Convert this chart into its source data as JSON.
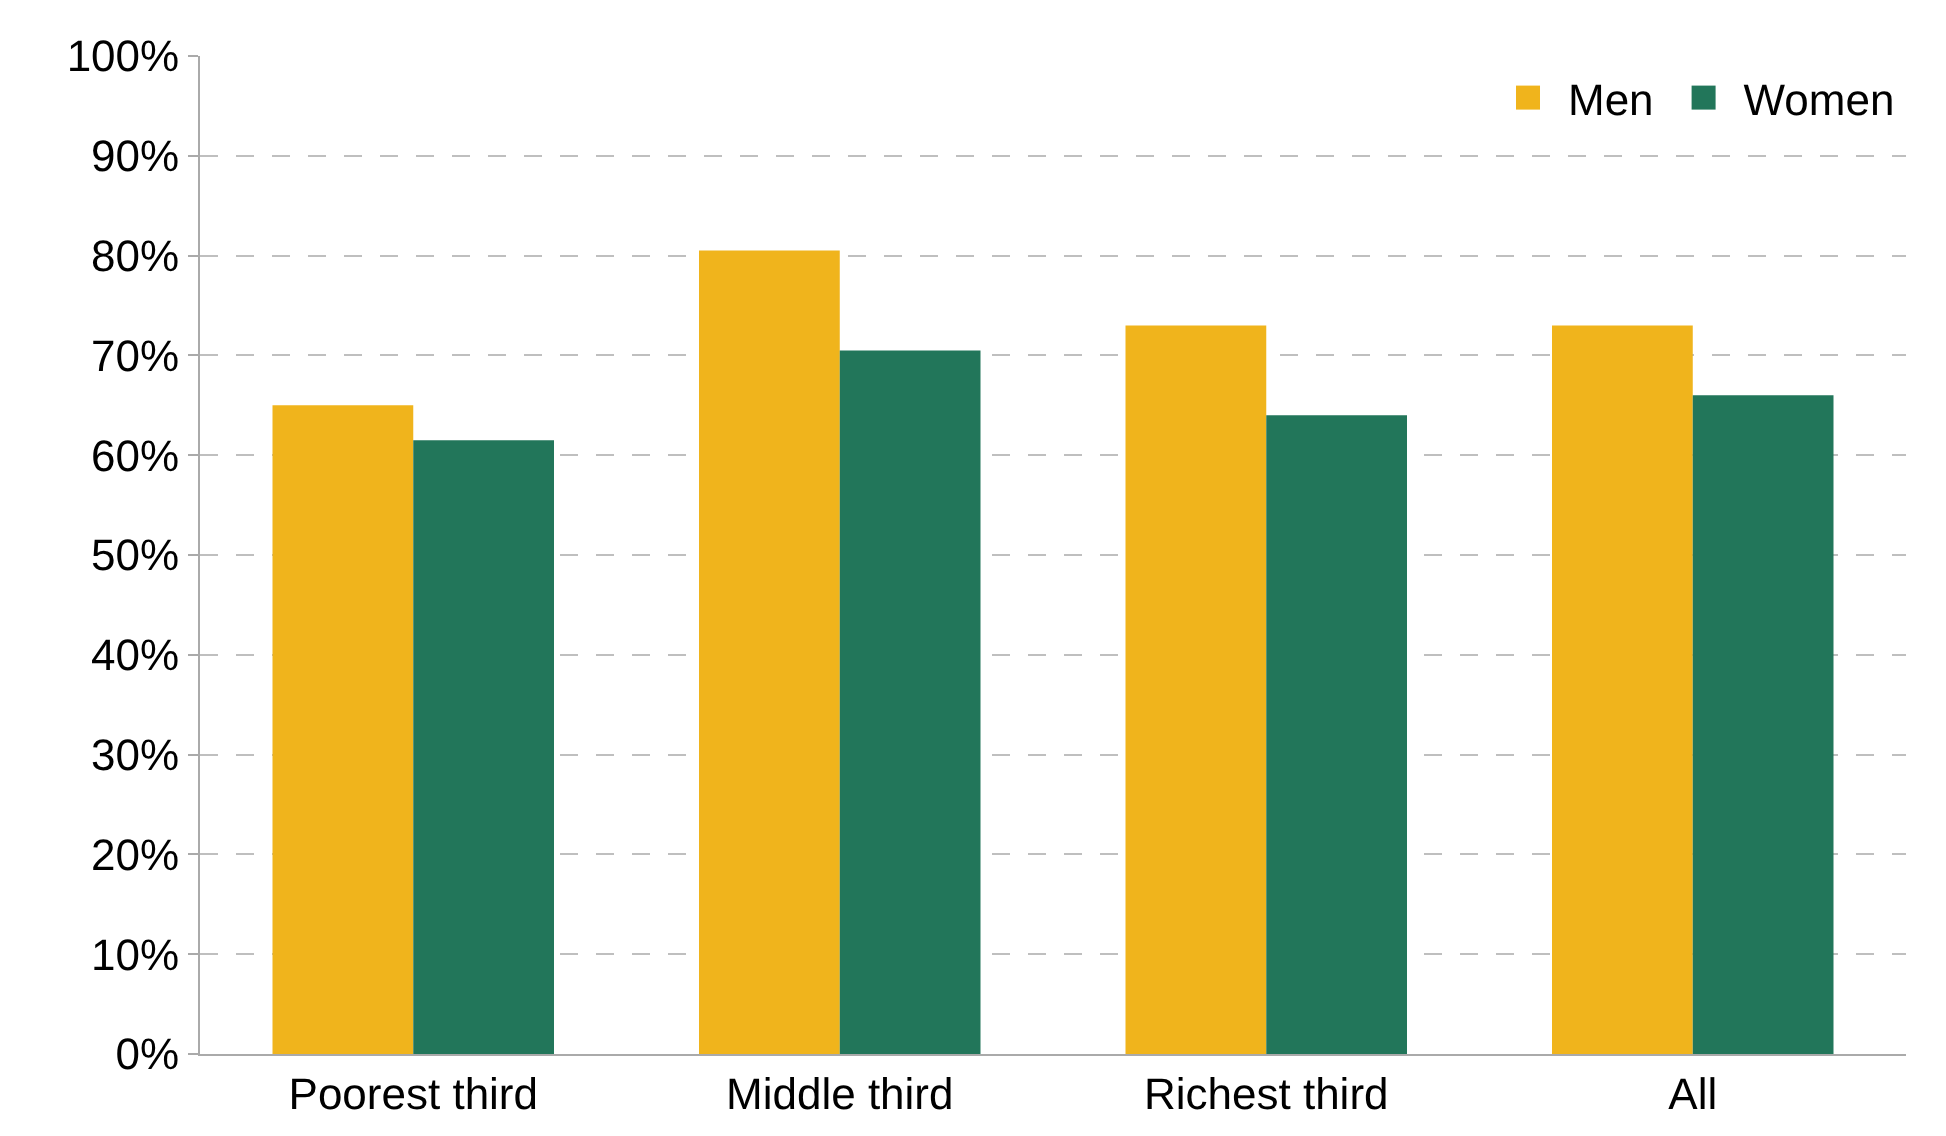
{
  "chart_data": {
    "type": "bar",
    "categories": [
      "Poorest third",
      "Middle third",
      "Richest third",
      "All"
    ],
    "series": [
      {
        "name": "Men",
        "color": "#f0b41c",
        "values": [
          65,
          80.5,
          73,
          73
        ]
      },
      {
        "name": "Women",
        "color": "#22765a",
        "values": [
          61.5,
          70.5,
          64,
          66
        ]
      }
    ],
    "ylim": [
      0,
      100
    ],
    "yticks": [
      {
        "value": 0,
        "label": "0%"
      },
      {
        "value": 10,
        "label": "10%"
      },
      {
        "value": 20,
        "label": "20%"
      },
      {
        "value": 30,
        "label": "30%"
      },
      {
        "value": 40,
        "label": "40%"
      },
      {
        "value": 50,
        "label": "50%"
      },
      {
        "value": 60,
        "label": "60%"
      },
      {
        "value": 70,
        "label": "70%"
      },
      {
        "value": 80,
        "label": "80%"
      },
      {
        "value": 90,
        "label": "90%"
      },
      {
        "value": 100,
        "label": "100%"
      }
    ],
    "grid": "y",
    "legend": "top right"
  }
}
